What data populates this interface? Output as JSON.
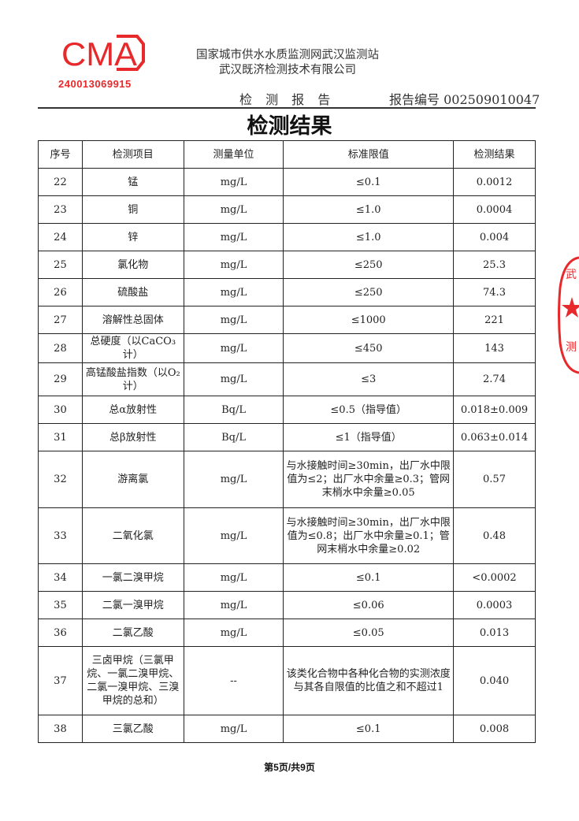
{
  "header": {
    "cma_logo_text": "CMA",
    "cma_number": "240013069915",
    "org_line1": "国家城市供水水质监测网武汉监测站",
    "org_line2": "武汉既济检测技术有限公司",
    "report_label": "检 测 报 告",
    "report_number": "报告编号 002509010047"
  },
  "title": "检测结果",
  "table": {
    "columns": [
      "序号",
      "检测项目",
      "测量单位",
      "标准限值",
      "检测结果"
    ],
    "rows": [
      {
        "no": "22",
        "item": "锰",
        "unit": "mg/L",
        "limit": "≤0.1",
        "result": "0.0012",
        "h": 35
      },
      {
        "no": "23",
        "item": "铜",
        "unit": "mg/L",
        "limit": "≤1.0",
        "result": "0.0004",
        "h": 35
      },
      {
        "no": "24",
        "item": "锌",
        "unit": "mg/L",
        "limit": "≤1.0",
        "result": "0.004",
        "h": 35
      },
      {
        "no": "25",
        "item": "氯化物",
        "unit": "mg/L",
        "limit": "≤250",
        "result": "25.3",
        "h": 35
      },
      {
        "no": "26",
        "item": "硫酸盐",
        "unit": "mg/L",
        "limit": "≤250",
        "result": "74.3",
        "h": 35
      },
      {
        "no": "27",
        "item": "溶解性总固体",
        "unit": "mg/L",
        "limit": "≤1000",
        "result": "221",
        "h": 35
      },
      {
        "no": "28",
        "item": "总硬度（以CaCO₃计）",
        "unit": "mg/L",
        "limit": "≤450",
        "result": "143",
        "h": 37
      },
      {
        "no": "29",
        "item": "高锰酸盐指数（以O₂计）",
        "unit": "mg/L",
        "limit": "≤3",
        "result": "2.74",
        "h": 42
      },
      {
        "no": "30",
        "item": "总α放射性",
        "unit": "Bq/L",
        "limit": "≤0.5（指导值）",
        "result": "0.018±0.009",
        "h": 35
      },
      {
        "no": "31",
        "item": "总β放射性",
        "unit": "Bq/L",
        "limit": "≤1（指导值）",
        "result": "0.063±0.014",
        "h": 35
      },
      {
        "no": "32",
        "item": "游离氯",
        "unit": "mg/L",
        "limit": "与水接触时间≥30min，出厂水中限值为≤2；出厂水中余量≥0.3；管网末梢水中余量≥0.05",
        "result": "0.57",
        "h": 72
      },
      {
        "no": "33",
        "item": "二氧化氯",
        "unit": "mg/L",
        "limit": "与水接触时间≥30min，出厂水中限值为≤0.8；出厂水中余量≥0.1；管网末梢水中余量≥0.02",
        "result": "0.48",
        "h": 71
      },
      {
        "no": "34",
        "item": "一氯二溴甲烷",
        "unit": "mg/L",
        "limit": "≤0.1",
        "result": "<0.0002",
        "h": 35
      },
      {
        "no": "35",
        "item": "二氯一溴甲烷",
        "unit": "mg/L",
        "limit": "≤0.06",
        "result": "0.0003",
        "h": 35
      },
      {
        "no": "36",
        "item": "二氯乙酸",
        "unit": "mg/L",
        "limit": "≤0.05",
        "result": "0.013",
        "h": 35
      },
      {
        "no": "37",
        "item": "三卤甲烷（三氯甲烷、一氯二溴甲烷、二氯一溴甲烷、三溴甲烷的总和）",
        "unit": "--",
        "limit": "该类化合物中各种化合物的实测浓度与其各自限值的比值之和不超过1",
        "result": "0.040",
        "h": 87
      },
      {
        "no": "38",
        "item": "三氯乙酸",
        "unit": "mg/L",
        "limit": "≤0.1",
        "result": "0.008",
        "h": 35
      }
    ]
  },
  "footer": "第5页/共9页",
  "stamp_text": "武汉既济检测",
  "colors": {
    "stamp_red": "#e8292b"
  }
}
